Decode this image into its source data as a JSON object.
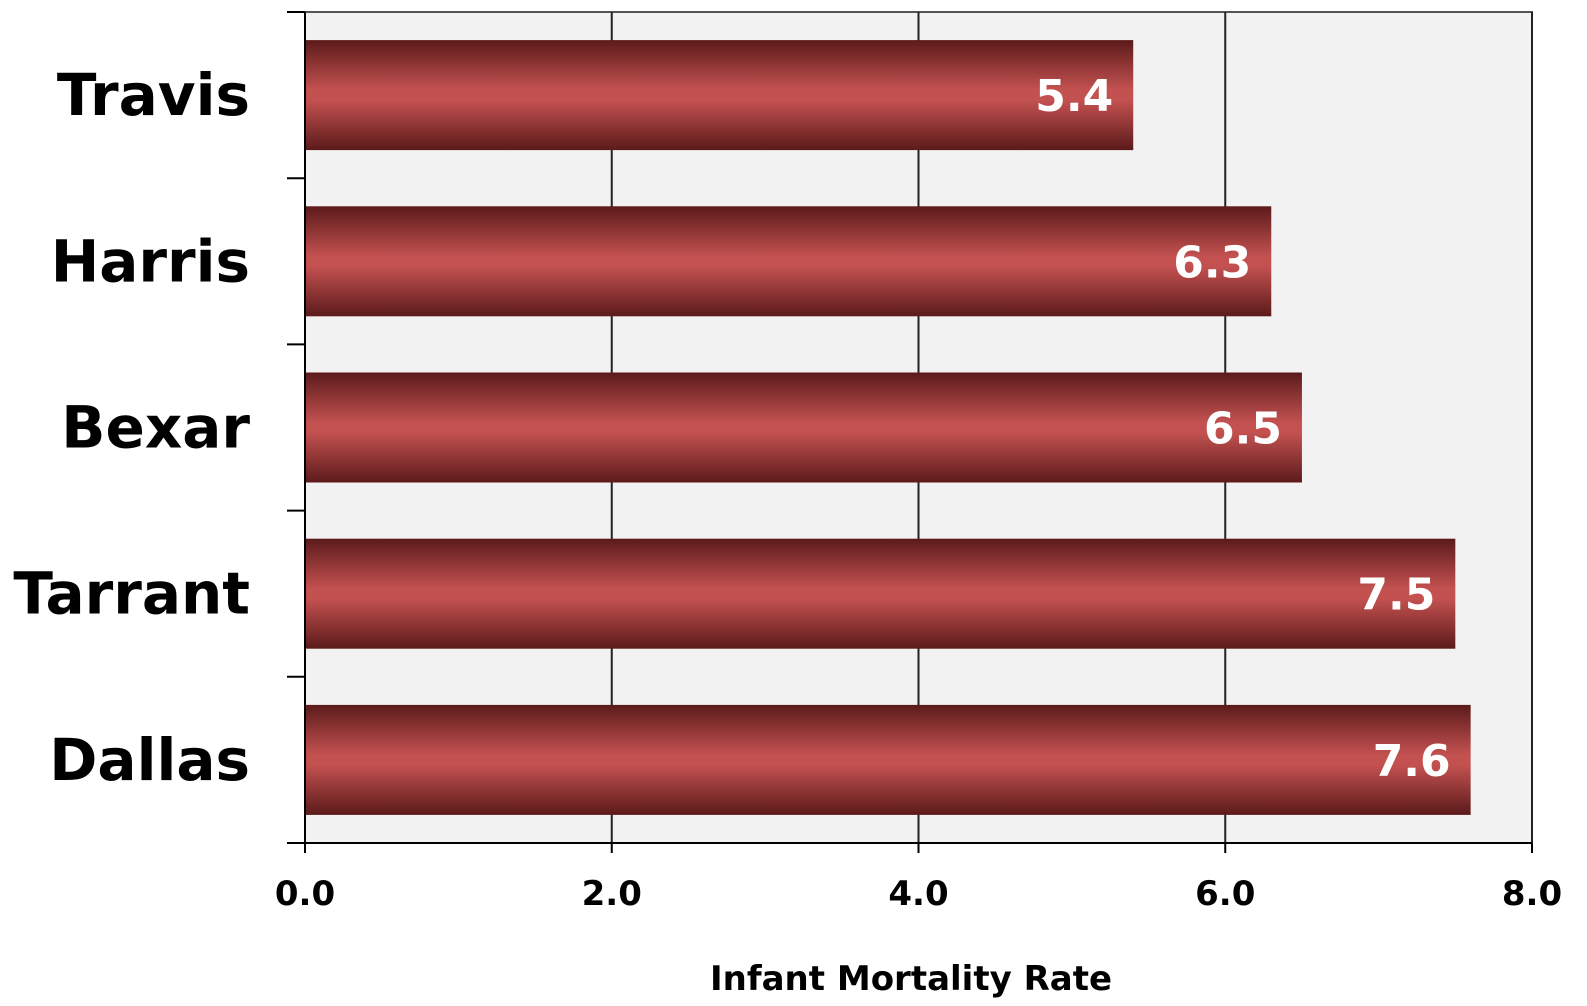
{
  "chart_data": {
    "type": "bar",
    "orientation": "horizontal",
    "categories": [
      "Travis",
      "Harris",
      "Bexar",
      "Tarrant",
      "Dallas"
    ],
    "values": [
      5.4,
      6.3,
      6.5,
      7.5,
      7.6
    ],
    "data_labels": [
      "5.4",
      "6.3",
      "6.5",
      "7.5",
      "7.6"
    ],
    "xlabel": "Infant Mortality Rate",
    "xlim": [
      0,
      8
    ],
    "xticks": [
      0,
      2,
      4,
      6,
      8
    ],
    "xtick_labels": [
      "0.0",
      "2.0",
      "4.0",
      "6.0",
      "8.0"
    ],
    "grid": "vertical",
    "colors": {
      "bar_center": "#c25150",
      "bar_edge": "#5c1a1a",
      "plot_background": "#f2f2f2",
      "gridline": "#222222"
    }
  }
}
